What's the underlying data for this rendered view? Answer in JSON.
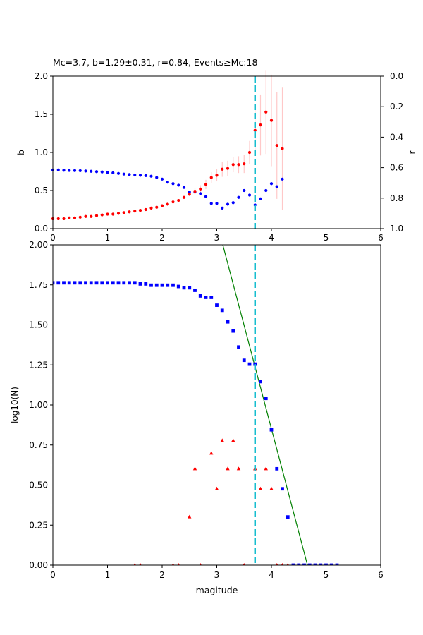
{
  "chart_data": [
    {
      "type": "scatter",
      "title": "Mc=3.7, b=1.29±0.31, r=0.84, Events≥Mc:18",
      "xlabel": "",
      "ylabel": "b",
      "y2label": "r",
      "xlim": [
        0,
        6
      ],
      "ylim": [
        0,
        2
      ],
      "y2lim": [
        1.0,
        0.0
      ],
      "y2_inverted": true,
      "xticks": [
        "0",
        "1",
        "2",
        "3",
        "4",
        "5",
        "6"
      ],
      "yticks": [
        "0.0",
        "0.5",
        "1.0",
        "1.5",
        "2.0"
      ],
      "y2ticks": [
        "1.0",
        "0.8",
        "0.6",
        "0.4",
        "0.2",
        "0.0"
      ],
      "grid": false,
      "mc_line": {
        "x": 3.7,
        "color": "#17becf",
        "style": "dashed"
      },
      "series": [
        {
          "axis": "left",
          "marker": "dot",
          "color": "#ff0000",
          "errorbar_color": "#ffc8c8",
          "points": [
            {
              "x": 0.0,
              "y": 0.13
            },
            {
              "x": 0.1,
              "y": 0.13
            },
            {
              "x": 0.2,
              "y": 0.13
            },
            {
              "x": 0.3,
              "y": 0.14
            },
            {
              "x": 0.4,
              "y": 0.14
            },
            {
              "x": 0.5,
              "y": 0.15
            },
            {
              "x": 0.6,
              "y": 0.16
            },
            {
              "x": 0.7,
              "y": 0.16
            },
            {
              "x": 0.8,
              "y": 0.17
            },
            {
              "x": 0.9,
              "y": 0.18
            },
            {
              "x": 1.0,
              "y": 0.19
            },
            {
              "x": 1.1,
              "y": 0.19
            },
            {
              "x": 1.2,
              "y": 0.2
            },
            {
              "x": 1.3,
              "y": 0.21
            },
            {
              "x": 1.4,
              "y": 0.22
            },
            {
              "x": 1.5,
              "y": 0.23
            },
            {
              "x": 1.6,
              "y": 0.24
            },
            {
              "x": 1.7,
              "y": 0.25
            },
            {
              "x": 1.8,
              "y": 0.27
            },
            {
              "x": 1.9,
              "y": 0.28
            },
            {
              "x": 2.0,
              "y": 0.3
            },
            {
              "x": 2.1,
              "y": 0.32
            },
            {
              "x": 2.2,
              "y": 0.35
            },
            {
              "x": 2.3,
              "y": 0.37
            },
            {
              "x": 2.4,
              "y": 0.41
            },
            {
              "x": 2.5,
              "y": 0.45
            },
            {
              "x": 2.6,
              "y": 0.49,
              "err": 0.04
            },
            {
              "x": 2.7,
              "y": 0.52,
              "err": 0.05
            },
            {
              "x": 2.8,
              "y": 0.58,
              "err": 0.06
            },
            {
              "x": 2.9,
              "y": 0.67,
              "err": 0.07
            },
            {
              "x": 3.0,
              "y": 0.7,
              "err": 0.08
            },
            {
              "x": 3.1,
              "y": 0.78,
              "err": 0.1
            },
            {
              "x": 3.2,
              "y": 0.79,
              "err": 0.1
            },
            {
              "x": 3.3,
              "y": 0.84,
              "err": 0.1
            },
            {
              "x": 3.4,
              "y": 0.84,
              "err": 0.11
            },
            {
              "x": 3.5,
              "y": 0.85,
              "err": 0.12
            },
            {
              "x": 3.6,
              "y": 1.0,
              "err": 0.15
            },
            {
              "x": 3.7,
              "y": 1.29,
              "err": 0.31
            },
            {
              "x": 3.8,
              "y": 1.36,
              "err": 0.4
            },
            {
              "x": 3.9,
              "y": 1.53,
              "err": 0.55
            },
            {
              "x": 4.0,
              "y": 1.42,
              "err": 0.6
            },
            {
              "x": 4.1,
              "y": 1.09,
              "err": 0.7
            },
            {
              "x": 4.2,
              "y": 1.05,
              "err": 0.8
            }
          ]
        },
        {
          "axis": "right",
          "marker": "dot",
          "color": "#0000ff",
          "points": [
            {
              "x": 0.0,
              "y": 0.615
            },
            {
              "x": 0.1,
              "y": 0.615
            },
            {
              "x": 0.2,
              "y": 0.617
            },
            {
              "x": 0.3,
              "y": 0.618
            },
            {
              "x": 0.4,
              "y": 0.619
            },
            {
              "x": 0.5,
              "y": 0.62
            },
            {
              "x": 0.6,
              "y": 0.622
            },
            {
              "x": 0.7,
              "y": 0.624
            },
            {
              "x": 0.8,
              "y": 0.626
            },
            {
              "x": 0.9,
              "y": 0.628
            },
            {
              "x": 1.0,
              "y": 0.631
            },
            {
              "x": 1.1,
              "y": 0.634
            },
            {
              "x": 1.2,
              "y": 0.638
            },
            {
              "x": 1.3,
              "y": 0.642
            },
            {
              "x": 1.4,
              "y": 0.645
            },
            {
              "x": 1.5,
              "y": 0.648
            },
            {
              "x": 1.6,
              "y": 0.65
            },
            {
              "x": 1.7,
              "y": 0.652
            },
            {
              "x": 1.8,
              "y": 0.656
            },
            {
              "x": 1.9,
              "y": 0.665
            },
            {
              "x": 2.0,
              "y": 0.675
            },
            {
              "x": 2.1,
              "y": 0.695
            },
            {
              "x": 2.2,
              "y": 0.705
            },
            {
              "x": 2.3,
              "y": 0.715
            },
            {
              "x": 2.4,
              "y": 0.73
            },
            {
              "x": 2.5,
              "y": 0.76
            },
            {
              "x": 2.6,
              "y": 0.76
            },
            {
              "x": 2.7,
              "y": 0.77
            },
            {
              "x": 2.8,
              "y": 0.79
            },
            {
              "x": 2.9,
              "y": 0.835
            },
            {
              "x": 3.0,
              "y": 0.835
            },
            {
              "x": 3.1,
              "y": 0.865
            },
            {
              "x": 3.2,
              "y": 0.84
            },
            {
              "x": 3.3,
              "y": 0.83
            },
            {
              "x": 3.4,
              "y": 0.795
            },
            {
              "x": 3.5,
              "y": 0.75
            },
            {
              "x": 3.6,
              "y": 0.78
            },
            {
              "x": 3.7,
              "y": 0.845
            },
            {
              "x": 3.8,
              "y": 0.805
            },
            {
              "x": 3.9,
              "y": 0.75
            },
            {
              "x": 4.0,
              "y": 0.705
            },
            {
              "x": 4.1,
              "y": 0.725
            },
            {
              "x": 4.2,
              "y": 0.675
            }
          ]
        }
      ]
    },
    {
      "type": "scatter",
      "title": "",
      "xlabel": "magitude",
      "ylabel": "log10(N)",
      "xlim": [
        0,
        6
      ],
      "ylim": [
        0,
        2
      ],
      "xticks": [
        "0",
        "1",
        "2",
        "3",
        "4",
        "5",
        "6"
      ],
      "yticks": [
        "0.00",
        "0.25",
        "0.50",
        "0.75",
        "1.00",
        "1.25",
        "1.50",
        "1.75",
        "2.00"
      ],
      "grid": false,
      "mc_line": {
        "x": 3.7,
        "color": "#17becf",
        "style": "dashed"
      },
      "fit_line": {
        "color": "#008000",
        "x": [
          3.11,
          4.66
        ],
        "y": [
          2.0,
          0.0
        ]
      },
      "series": [
        {
          "marker": "square",
          "color": "#0000ff",
          "points": [
            {
              "x": 0.0,
              "y": 1.763
            },
            {
              "x": 0.1,
              "y": 1.763
            },
            {
              "x": 0.2,
              "y": 1.763
            },
            {
              "x": 0.3,
              "y": 1.763
            },
            {
              "x": 0.4,
              "y": 1.763
            },
            {
              "x": 0.5,
              "y": 1.763
            },
            {
              "x": 0.6,
              "y": 1.763
            },
            {
              "x": 0.7,
              "y": 1.763
            },
            {
              "x": 0.8,
              "y": 1.763
            },
            {
              "x": 0.9,
              "y": 1.763
            },
            {
              "x": 1.0,
              "y": 1.763
            },
            {
              "x": 1.1,
              "y": 1.763
            },
            {
              "x": 1.2,
              "y": 1.763
            },
            {
              "x": 1.3,
              "y": 1.763
            },
            {
              "x": 1.4,
              "y": 1.763
            },
            {
              "x": 1.5,
              "y": 1.763
            },
            {
              "x": 1.6,
              "y": 1.756
            },
            {
              "x": 1.7,
              "y": 1.756
            },
            {
              "x": 1.8,
              "y": 1.748
            },
            {
              "x": 1.9,
              "y": 1.748
            },
            {
              "x": 2.0,
              "y": 1.748
            },
            {
              "x": 2.1,
              "y": 1.748
            },
            {
              "x": 2.2,
              "y": 1.748
            },
            {
              "x": 2.3,
              "y": 1.74
            },
            {
              "x": 2.4,
              "y": 1.732
            },
            {
              "x": 2.5,
              "y": 1.732
            },
            {
              "x": 2.6,
              "y": 1.716
            },
            {
              "x": 2.7,
              "y": 1.681
            },
            {
              "x": 2.8,
              "y": 1.672
            },
            {
              "x": 2.9,
              "y": 1.672
            },
            {
              "x": 3.0,
              "y": 1.623
            },
            {
              "x": 3.1,
              "y": 1.591
            },
            {
              "x": 3.2,
              "y": 1.519
            },
            {
              "x": 3.3,
              "y": 1.462
            },
            {
              "x": 3.4,
              "y": 1.362
            },
            {
              "x": 3.5,
              "y": 1.279
            },
            {
              "x": 3.6,
              "y": 1.255
            },
            {
              "x": 3.7,
              "y": 1.255
            },
            {
              "x": 3.8,
              "y": 1.146
            },
            {
              "x": 3.9,
              "y": 1.041
            },
            {
              "x": 4.0,
              "y": 0.845
            },
            {
              "x": 4.1,
              "y": 0.602
            },
            {
              "x": 4.2,
              "y": 0.477
            },
            {
              "x": 4.3,
              "y": 0.301
            },
            {
              "x": 4.4,
              "y": 0.0
            },
            {
              "x": 4.5,
              "y": 0.0
            },
            {
              "x": 4.6,
              "y": 0.0
            },
            {
              "x": 4.7,
              "y": 0.0
            },
            {
              "x": 4.8,
              "y": 0.0
            },
            {
              "x": 4.9,
              "y": 0.0
            },
            {
              "x": 5.0,
              "y": 0.0
            },
            {
              "x": 5.1,
              "y": 0.0
            },
            {
              "x": 5.2,
              "y": 0.0
            }
          ]
        },
        {
          "marker": "triangle",
          "color": "#ff0000",
          "points": [
            {
              "x": 1.5,
              "y": 0.0
            },
            {
              "x": 1.6,
              "y": 0.0
            },
            {
              "x": 2.2,
              "y": 0.0
            },
            {
              "x": 2.3,
              "y": 0.0
            },
            {
              "x": 2.5,
              "y": 0.301
            },
            {
              "x": 2.6,
              "y": 0.602
            },
            {
              "x": 2.7,
              "y": 0.0
            },
            {
              "x": 2.9,
              "y": 0.699
            },
            {
              "x": 3.0,
              "y": 0.477
            },
            {
              "x": 3.1,
              "y": 0.778
            },
            {
              "x": 3.2,
              "y": 0.602
            },
            {
              "x": 3.3,
              "y": 0.778
            },
            {
              "x": 3.4,
              "y": 0.602
            },
            {
              "x": 3.5,
              "y": 0.0
            },
            {
              "x": 3.7,
              "y": 0.602
            },
            {
              "x": 3.8,
              "y": 0.477
            },
            {
              "x": 3.9,
              "y": 0.602
            },
            {
              "x": 4.0,
              "y": 0.477
            },
            {
              "x": 4.1,
              "y": 0.0
            },
            {
              "x": 4.2,
              "y": 0.0
            },
            {
              "x": 4.3,
              "y": 0.0
            }
          ]
        }
      ]
    }
  ]
}
